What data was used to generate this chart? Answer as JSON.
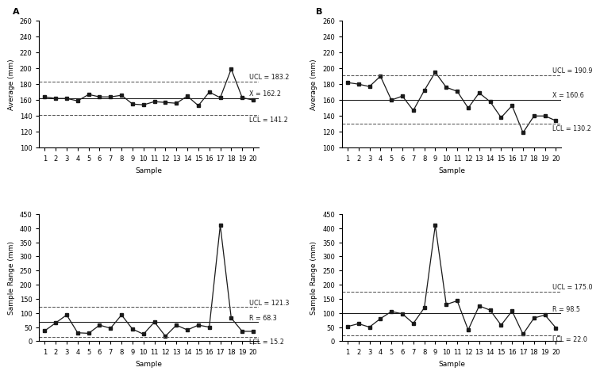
{
  "panel_A_avg": [
    164,
    162,
    162,
    159,
    167,
    164,
    164,
    166,
    155,
    154,
    158,
    157,
    156,
    165,
    153,
    170,
    163,
    199,
    163,
    160
  ],
  "panel_A_ucl": 183.2,
  "panel_A_xbar": 162.2,
  "panel_A_lcl": 141.2,
  "panel_A_ylim": [
    100,
    260
  ],
  "panel_A_yticks": [
    100,
    120,
    140,
    160,
    180,
    200,
    220,
    240,
    260
  ],
  "panel_B_avg": [
    182,
    180,
    177,
    190,
    160,
    165,
    147,
    172,
    195,
    176,
    171,
    150,
    169,
    158,
    138,
    153,
    119,
    140,
    140,
    134
  ],
  "panel_B_ucl": 190.9,
  "panel_B_xbar": 160.6,
  "panel_B_lcl": 130.2,
  "panel_B_ylim": [
    100,
    260
  ],
  "panel_B_yticks": [
    100,
    120,
    140,
    160,
    180,
    200,
    220,
    240,
    260
  ],
  "panel_C_range_x": [
    1,
    2,
    3,
    4,
    5,
    6,
    7,
    8,
    9,
    10,
    11,
    12,
    13,
    14,
    15,
    16,
    17,
    18,
    19,
    20
  ],
  "panel_C_range_y": [
    37,
    65,
    93,
    30,
    28,
    57,
    46,
    93,
    43,
    25,
    68,
    18,
    57,
    40,
    57,
    50,
    410,
    82,
    35,
    35
  ],
  "panel_C_ucl": 121.3,
  "panel_C_rbar": 68.3,
  "panel_C_lcl": 15.2,
  "panel_C_ylim": [
    0,
    450
  ],
  "panel_C_yticks": [
    0,
    50,
    100,
    150,
    200,
    250,
    300,
    350,
    400,
    450
  ],
  "panel_D_range_x": [
    1,
    2,
    3,
    4,
    5,
    6,
    7,
    8,
    9,
    10,
    11,
    12,
    13,
    14,
    15,
    16,
    17,
    18,
    19,
    20
  ],
  "panel_D_range_y": [
    52,
    62,
    50,
    80,
    105,
    97,
    63,
    118,
    410,
    130,
    143,
    40,
    125,
    110,
    57,
    107,
    25,
    82,
    93,
    47
  ],
  "panel_D_ucl": 175.0,
  "panel_D_rbar": 98.5,
  "panel_D_lcl": 22.0,
  "panel_D_ylim": [
    0,
    450
  ],
  "panel_D_yticks": [
    0,
    50,
    100,
    150,
    200,
    250,
    300,
    350,
    400,
    450
  ],
  "samples_20": [
    1,
    2,
    3,
    4,
    5,
    6,
    7,
    8,
    9,
    10,
    11,
    12,
    13,
    14,
    15,
    16,
    17,
    18,
    19,
    20
  ],
  "xlabel": "Sample",
  "ylabel_avg": "Average (mm)",
  "ylabel_range": "Sample Range (mm)",
  "label_A": "A",
  "label_B": "B",
  "line_color": "#1a1a1a",
  "dashed_color": "#555555",
  "marker": "s",
  "markersize": 3,
  "linewidth": 0.9,
  "ctrl_linewidth": 0.75,
  "fontsize_label": 6.5,
  "fontsize_annot": 5.8,
  "fontsize_panel": 8,
  "fontsize_tick": 6
}
